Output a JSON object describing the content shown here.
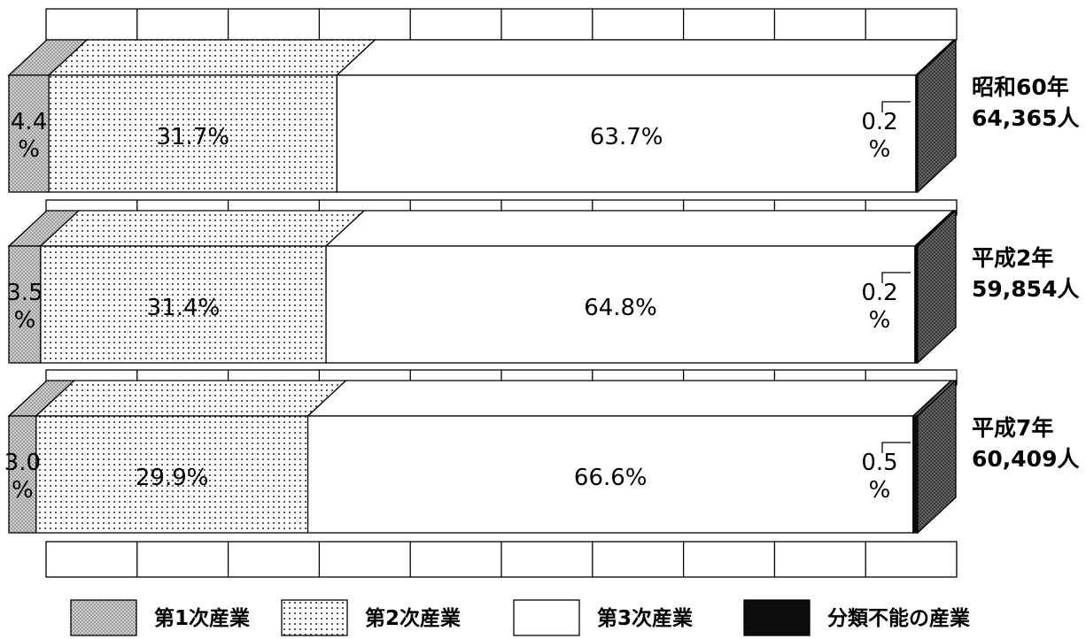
{
  "chart_data": {
    "type": "bar",
    "stacked": true,
    "orientation": "horizontal",
    "percent_stacked": true,
    "grid": true,
    "legend_position": "bottom",
    "categories": [
      {
        "label": "昭和60年",
        "total": "64,365人"
      },
      {
        "label": "平成2年",
        "total": "59,854人"
      },
      {
        "label": "平成7年",
        "total": "60,409人"
      }
    ],
    "series": [
      {
        "name": "第1次産業",
        "values": [
          4.4,
          3.5,
          3.0
        ],
        "labels": [
          "4.4\n%",
          "3.5\n%",
          "3.0\n%"
        ],
        "color": "#c8c8c8",
        "pattern": "halftone"
      },
      {
        "name": "第2次産業",
        "values": [
          31.7,
          31.4,
          29.9
        ],
        "labels": [
          "31.7%",
          "31.4%",
          "29.9%"
        ],
        "color": "#ffffff",
        "pattern": "dots"
      },
      {
        "name": "第3次産業",
        "values": [
          63.7,
          64.8,
          66.6
        ],
        "labels": [
          "63.7%",
          "64.8%",
          "66.6%"
        ],
        "color": "#ffffff",
        "pattern": "none"
      },
      {
        "name": "分類不能の産業",
        "values": [
          0.2,
          0.2,
          0.5
        ],
        "labels": [
          "0.2\n%",
          "0.2\n%",
          "0.5\n%"
        ],
        "color": "#111111",
        "pattern": "solid"
      }
    ],
    "xlim": [
      0,
      100
    ]
  }
}
